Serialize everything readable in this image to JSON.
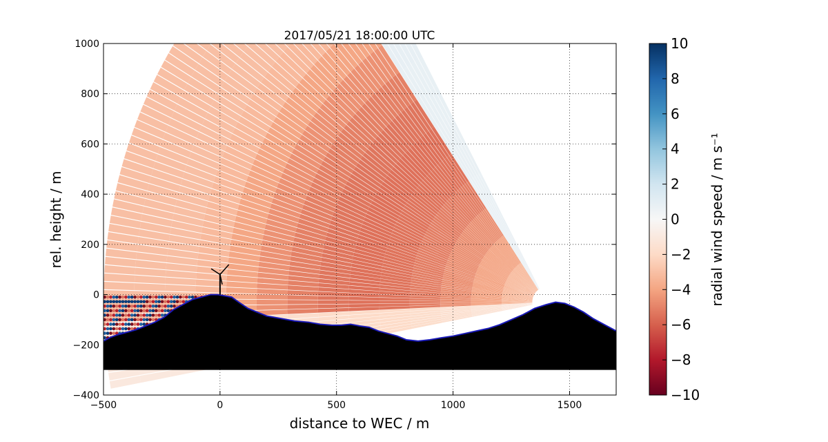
{
  "chart_data": {
    "type": "heatmap",
    "title": "2017/05/21 18:00:00 UTC",
    "xlabel": "distance to WEC / m",
    "ylabel": "rel. height / m",
    "xlim": [
      -500,
      1700
    ],
    "ylim": [
      -400,
      1000
    ],
    "xticks": [
      -500,
      0,
      500,
      1000,
      1500
    ],
    "yticks": [
      -400,
      -200,
      0,
      200,
      400,
      600,
      800,
      1000
    ],
    "xtick_labels": [
      "−500",
      "0",
      "500",
      "1000",
      "1500"
    ],
    "ytick_labels": [
      "−400",
      "−200",
      "0",
      "200",
      "400",
      "600",
      "800",
      "1000"
    ],
    "grid": true,
    "colormap": "RdBu",
    "colorbar": {
      "label": "radial wind speed / m s⁻¹",
      "range": [
        -10,
        10
      ],
      "ticks": [
        -10,
        -8,
        -6,
        -4,
        -2,
        0,
        2,
        4,
        6,
        8,
        10
      ],
      "tick_labels": [
        "−10",
        "−8",
        "−6",
        "−4",
        "−2",
        "0",
        "2",
        "4",
        "6",
        "8",
        "10"
      ]
    },
    "lidar_origin": [
      1400,
      -30
    ],
    "scan_fan": {
      "elevation_range_deg": [
        -10,
        61
      ],
      "max_range_m": 1900,
      "typical_speed_ms": -5.5
    },
    "terrain_profile": {
      "x": [
        -500,
        -470,
        -440,
        -400,
        -360,
        -320,
        -280,
        -240,
        -200,
        -160,
        -120,
        -80,
        -40,
        -10,
        20,
        50,
        80,
        120,
        160,
        200,
        260,
        320,
        380,
        430,
        480,
        520,
        560,
        600,
        640,
        680,
        720,
        760,
        800,
        850,
        900,
        950,
        1000,
        1050,
        1100,
        1150,
        1200,
        1250,
        1300,
        1350,
        1400,
        1440,
        1480,
        1520,
        1560,
        1600,
        1650,
        1700
      ],
      "y": [
        -185,
        -170,
        -160,
        -150,
        -140,
        -125,
        -110,
        -90,
        -60,
        -40,
        -20,
        -10,
        0,
        0,
        -5,
        -10,
        -30,
        -55,
        -70,
        -85,
        -95,
        -105,
        -110,
        -118,
        -122,
        -122,
        -118,
        -125,
        -130,
        -145,
        -155,
        -165,
        -180,
        -185,
        -180,
        -172,
        -165,
        -155,
        -145,
        -135,
        -120,
        -100,
        -80,
        -55,
        -40,
        -30,
        -35,
        -50,
        -70,
        -95,
        -120,
        -145
      ]
    },
    "wec": {
      "x": 0,
      "hub_height_m": 80
    }
  }
}
